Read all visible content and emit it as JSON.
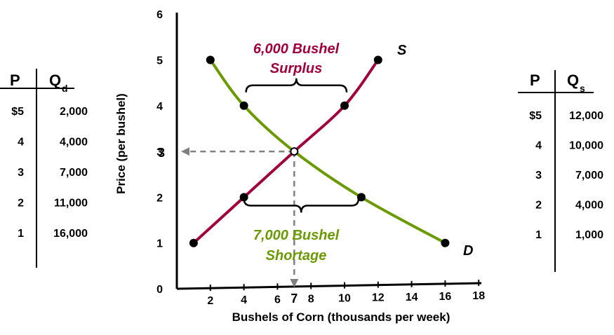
{
  "demand_table": {
    "header_p": "P",
    "header_q": "Q",
    "header_q_sub": "d",
    "rows": [
      {
        "p": "$5",
        "q": "2,000"
      },
      {
        "p": "4",
        "q": "4,000"
      },
      {
        "p": "3",
        "q": "7,000"
      },
      {
        "p": "2",
        "q": "11,000"
      },
      {
        "p": "1",
        "q": "16,000"
      }
    ]
  },
  "supply_table": {
    "header_p": "P",
    "header_q": "Q",
    "header_q_sub": "s",
    "rows": [
      {
        "p": "$5",
        "q": "12,000"
      },
      {
        "p": "4",
        "q": "10,000"
      },
      {
        "p": "3",
        "q": "7,000"
      },
      {
        "p": "2",
        "q": "4,000"
      },
      {
        "p": "1",
        "q": "1,000"
      }
    ]
  },
  "chart_data": {
    "type": "line",
    "title": "",
    "xlabel": "Bushels of Corn (thousands per week)",
    "ylabel": "Price (per bushel)",
    "xlim": [
      0,
      18
    ],
    "ylim": [
      0,
      6
    ],
    "x_ticks": [
      "2",
      "4",
      "6",
      "8",
      "10",
      "12",
      "14",
      "16",
      "18"
    ],
    "y_ticks": [
      "0",
      "1",
      "2",
      "3",
      "4",
      "5",
      "6"
    ],
    "grid": false,
    "colors": {
      "demand": "#6a9a00",
      "supply": "#a0003c",
      "guide": "#808080"
    },
    "series": [
      {
        "name": "D",
        "points": [
          [
            2,
            5
          ],
          [
            4,
            4
          ],
          [
            7,
            3
          ],
          [
            11,
            2
          ],
          [
            16,
            1
          ]
        ]
      },
      {
        "name": "S",
        "points": [
          [
            1,
            1
          ],
          [
            4,
            2
          ],
          [
            7,
            3
          ],
          [
            10,
            4
          ],
          [
            12,
            5
          ]
        ]
      }
    ],
    "equilibrium": {
      "x": 7,
      "y": 3,
      "x_label": "7",
      "y_label": "3"
    },
    "annotations": [
      {
        "text_line1": "6,000 Bushel",
        "text_line2": "Surplus",
        "price": 4,
        "x_from": 4,
        "x_to": 10
      },
      {
        "text_line1": "7,000 Bushel",
        "text_line2": "Shortage",
        "price": 2,
        "x_from": 4,
        "x_to": 11
      }
    ]
  }
}
